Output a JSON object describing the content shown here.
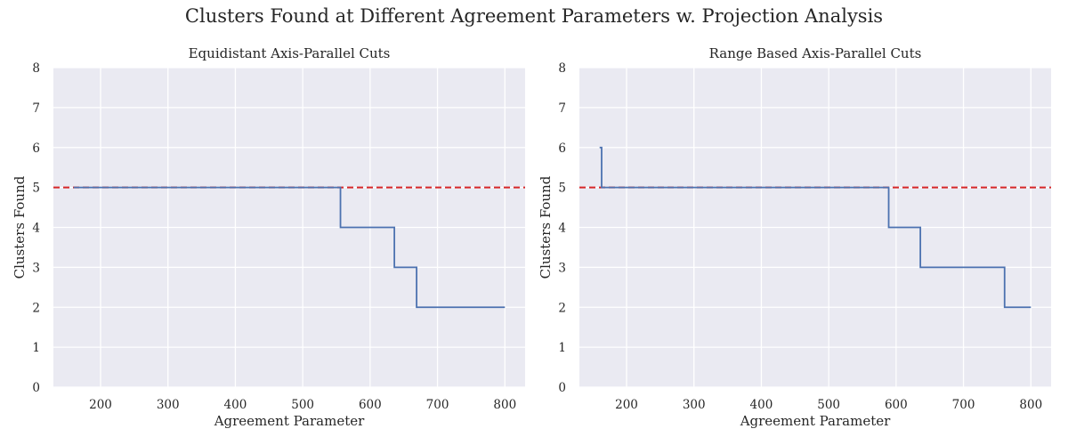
{
  "figure": {
    "suptitle": "Clusters Found at Different Agreement Parameters w. Projection Analysis"
  },
  "colors": {
    "panel_bg": "#eaeaf2",
    "grid": "#ffffff",
    "series": "#4c72b0",
    "reference": "#d62728",
    "text": "#262626"
  },
  "chart_data": [
    {
      "type": "line",
      "title": "Equidistant Axis-Parallel Cuts",
      "xlabel": "Agreement Parameter",
      "ylabel": "Clusters Found",
      "xlim": [
        130,
        830
      ],
      "ylim": [
        0,
        8
      ],
      "xticks": [
        200,
        300,
        400,
        500,
        600,
        700,
        800
      ],
      "yticks": [
        0,
        1,
        2,
        3,
        4,
        5,
        6,
        7,
        8
      ],
      "grid": true,
      "step": "post",
      "x": [
        160,
        556,
        636,
        669,
        800
      ],
      "y": [
        5,
        4,
        3,
        2,
        2
      ],
      "reference_line": {
        "y": 5,
        "style": "dashed"
      }
    },
    {
      "type": "line",
      "title": "Range Based Axis-Parallel Cuts",
      "xlabel": "Agreement Parameter",
      "ylabel": "Clusters Found",
      "xlim": [
        130,
        830
      ],
      "ylim": [
        0,
        8
      ],
      "xticks": [
        200,
        300,
        400,
        500,
        600,
        700,
        800
      ],
      "yticks": [
        0,
        1,
        2,
        3,
        4,
        5,
        6,
        7,
        8
      ],
      "grid": true,
      "step": "post",
      "x": [
        160,
        163,
        589,
        636,
        761,
        800
      ],
      "y": [
        6,
        5,
        4,
        3,
        2,
        2
      ],
      "reference_line": {
        "y": 5,
        "style": "dashed"
      }
    }
  ]
}
